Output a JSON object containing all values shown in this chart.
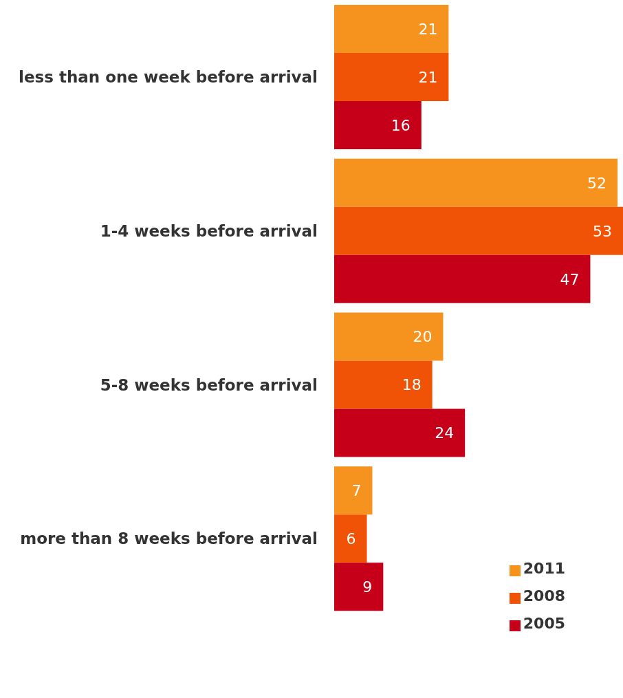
{
  "chart_data": {
    "type": "bar",
    "orientation": "horizontal",
    "categories": [
      "less than one week before arrival",
      "1-4 weeks before arrival",
      "5-8 weeks before arrival",
      "more than 8 weeks before arrival"
    ],
    "series": [
      {
        "name": "2011",
        "color": "#f6921e",
        "values": [
          21,
          52,
          20,
          7
        ]
      },
      {
        "name": "2008",
        "color": "#f05305",
        "values": [
          21,
          53,
          18,
          6
        ]
      },
      {
        "name": "2005",
        "color": "#c60018",
        "values": [
          16,
          47,
          24,
          9
        ]
      }
    ],
    "data_labels": true,
    "legend": "bottom right",
    "tick_labels": "y"
  }
}
